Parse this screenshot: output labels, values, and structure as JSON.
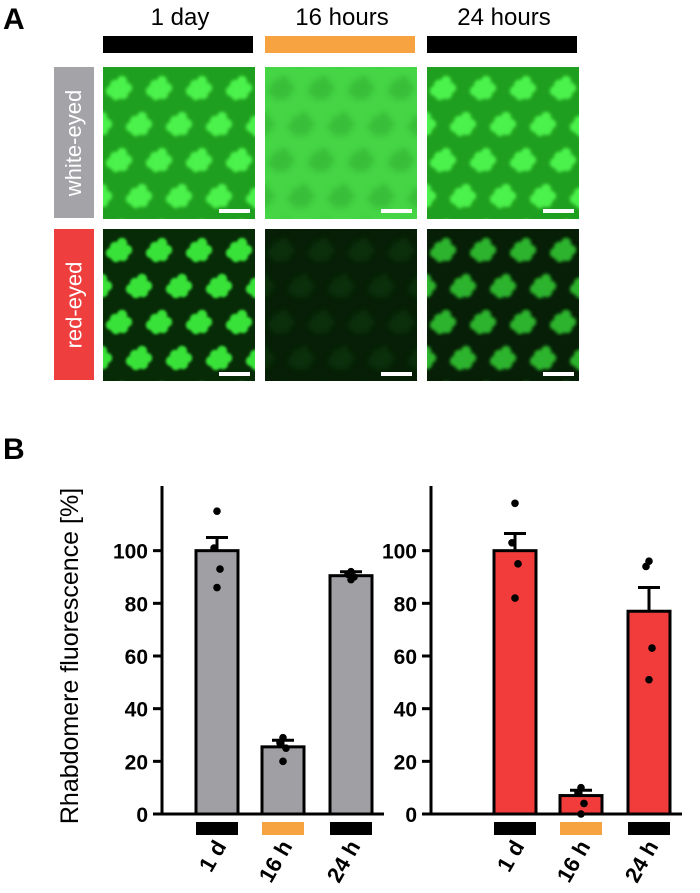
{
  "panels": {
    "a": "A",
    "b": "B"
  },
  "columns": [
    {
      "title": "1 day",
      "condition": "dark"
    },
    {
      "title": "16 hours",
      "condition": "light"
    },
    {
      "title": "24 hours",
      "condition": "dark"
    }
  ],
  "rows": [
    {
      "label": "white-eyed",
      "color": "#a3a3a8"
    },
    {
      "label": "red-eyed",
      "color": "#ee3e3e"
    }
  ],
  "colors": {
    "dark": "#000000",
    "light": "#f7a341",
    "gray_bar": "#a0a0a4",
    "red_bar": "#f23c3c"
  },
  "chart_data": [
    {
      "type": "bar",
      "ylabel": "Rhabdomere fluorescence [%]",
      "ylim": [
        0,
        120
      ],
      "yticks": [
        0,
        20,
        40,
        60,
        80,
        100
      ],
      "categories": [
        "1 d",
        "16 h",
        "24 h"
      ],
      "category_condition": [
        "dark",
        "light",
        "dark"
      ],
      "color": "#a0a0a4",
      "series": [
        {
          "values": [
            100,
            25.5,
            90.5
          ],
          "errors": [
            5,
            2.5,
            1.5
          ]
        }
      ],
      "points": [
        [
          115,
          101,
          93,
          86
        ],
        [
          29,
          27,
          25,
          20
        ],
        [
          92,
          91,
          90,
          89
        ]
      ]
    },
    {
      "type": "bar",
      "ylabel": "",
      "ylim": [
        0,
        120
      ],
      "yticks": [
        0,
        20,
        40,
        60,
        80,
        100
      ],
      "categories": [
        "1 d",
        "16 h",
        "24 h"
      ],
      "category_condition": [
        "dark",
        "light",
        "dark"
      ],
      "color": "#f23c3c",
      "series": [
        {
          "values": [
            100,
            7,
            77
          ],
          "errors": [
            6.5,
            2,
            9
          ]
        }
      ],
      "points": [
        [
          118,
          103,
          95,
          82
        ],
        [
          10,
          8,
          4,
          0
        ],
        [
          96,
          94,
          63,
          51
        ]
      ]
    }
  ]
}
